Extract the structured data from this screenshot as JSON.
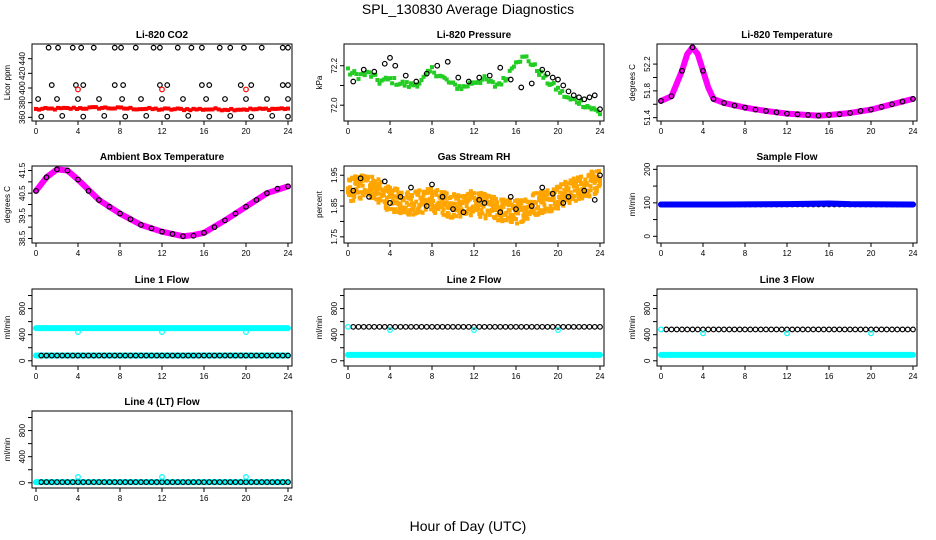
{
  "figure": {
    "title": "SPL_130830  Average Diagnostics",
    "xlabel": "Hour of Day (UTC)"
  },
  "colors": {
    "black": "#000000",
    "red": "#ff0000",
    "green": "#22cc22",
    "magenta": "#ff00ff",
    "orange": "#ffa500",
    "blue": "#0000ff",
    "cyan": "#00ffff"
  },
  "chart_data": [
    {
      "id": "co2",
      "type": "scatter",
      "title": "Li-820 CO2",
      "ylabel": "Licor ppm",
      "xlim": [
        0,
        24
      ],
      "ylim": [
        355,
        460
      ],
      "xticks": [
        0,
        4,
        8,
        12,
        16,
        20,
        24
      ],
      "yticks": [
        360,
        380,
        400,
        420,
        440
      ],
      "series": [
        {
          "kind": "band",
          "color": "red",
          "x": [
            0,
            3,
            6,
            9,
            12,
            15,
            18,
            21,
            24
          ],
          "y": [
            371,
            372,
            373,
            372,
            371,
            371,
            371,
            371,
            372
          ],
          "noise": 1.5,
          "step": 0.3
        },
        {
          "kind": "points",
          "color": "black",
          "x": [
            1.2,
            2.1,
            3.5,
            4.3,
            5.5,
            7.5,
            8.1,
            9.5,
            11.2,
            11.8,
            13.5,
            14.8,
            15.8,
            17.5,
            18.5,
            19.8,
            21.5,
            23.5,
            24
          ],
          "y": [
            455,
            455,
            455,
            455,
            455,
            455,
            455,
            455,
            455,
            455,
            455,
            455,
            455,
            455,
            455,
            455,
            455,
            455,
            455
          ]
        },
        {
          "kind": "points",
          "color": "black",
          "x": [
            1.5,
            3.8,
            4.5,
            7.5,
            8.3,
            11.8,
            12.5,
            15.8,
            16.5,
            19.5,
            20.5,
            23.5,
            24
          ],
          "y": [
            404,
            404,
            404,
            404,
            404,
            404,
            404,
            404,
            404,
            404,
            404,
            404,
            404
          ]
        },
        {
          "kind": "points",
          "color": "black",
          "x": [
            0.2,
            2.0,
            4.0,
            6.0,
            8.2,
            10.0,
            12.0,
            14.0,
            16.2,
            18.0,
            20.0,
            22.0,
            24
          ],
          "y": [
            385,
            385,
            385,
            385,
            385,
            385,
            385,
            385,
            385,
            385,
            385,
            385,
            385
          ]
        },
        {
          "kind": "points",
          "color": "black",
          "x": [
            0.5,
            2.5,
            4.5,
            6.5,
            8.5,
            10.5,
            12.5,
            14.5,
            16.5,
            18.5,
            20.5,
            22.5,
            24
          ],
          "y": [
            361,
            362,
            361,
            362,
            361,
            362,
            361,
            362,
            361,
            362,
            361,
            362,
            361
          ]
        },
        {
          "kind": "points",
          "color": "red",
          "x": [
            4.0,
            12.0,
            20.0
          ],
          "y": [
            398,
            398,
            398
          ]
        }
      ]
    },
    {
      "id": "pressure",
      "type": "scatter",
      "title": "Li-820 Pressure",
      "ylabel": "kPa",
      "xlim": [
        0,
        24
      ],
      "ylim": [
        71.92,
        72.31
      ],
      "xticks": [
        0,
        4,
        8,
        12,
        16,
        20,
        24
      ],
      "yticks": [
        72.0,
        72.1,
        72.2
      ],
      "ytick_labels": [
        "72.0",
        "",
        "72.2"
      ],
      "series": [
        {
          "kind": "band",
          "color": "green",
          "x": [
            0,
            1,
            2,
            3,
            4,
            5,
            6,
            7,
            8,
            9,
            10,
            11,
            12,
            13,
            14,
            15,
            16,
            17,
            18,
            19,
            20,
            21,
            22,
            23,
            24
          ],
          "y": [
            72.17,
            72.15,
            72.16,
            72.12,
            72.13,
            72.11,
            72.1,
            72.12,
            72.18,
            72.14,
            72.1,
            72.09,
            72.12,
            72.13,
            72.1,
            72.13,
            72.23,
            72.24,
            72.18,
            72.12,
            72.08,
            72.03,
            72.02,
            71.99,
            71.96
          ],
          "noise": 0.018,
          "step": 0.2
        },
        {
          "kind": "points",
          "color": "black",
          "x": [
            0.5,
            1.5,
            2.5,
            3.5,
            4.0,
            4.5,
            5.5,
            6.5,
            7.5,
            8.5,
            9.5,
            10.5,
            11.5,
            12.5,
            13.5,
            14.5,
            15.5,
            16.5,
            17.5,
            18.5,
            19.0,
            19.5,
            20.0,
            20.5,
            21.0,
            21.5,
            22.0,
            22.5,
            23.0,
            23.5,
            24.0
          ],
          "y": [
            72.12,
            72.18,
            72.17,
            72.21,
            72.24,
            72.2,
            72.15,
            72.12,
            72.16,
            72.2,
            72.22,
            72.14,
            72.12,
            72.14,
            72.15,
            72.19,
            72.13,
            72.09,
            72.11,
            72.18,
            72.16,
            72.14,
            72.13,
            72.1,
            72.07,
            72.05,
            72.04,
            72.03,
            72.04,
            72.05,
            71.98
          ]
        }
      ]
    },
    {
      "id": "temp",
      "type": "line",
      "title": "Li-820 Temperature",
      "ylabel": "degrees C",
      "xlim": [
        0,
        24
      ],
      "ylim": [
        51.35,
        52.5
      ],
      "xticks": [
        0,
        4,
        8,
        12,
        16,
        20,
        24
      ],
      "yticks": [
        51.4,
        51.6,
        51.8,
        52.0,
        52.2
      ],
      "ytick_labels": [
        "51.4",
        "",
        "51.8",
        "",
        "52.2"
      ],
      "series": [
        {
          "kind": "thick",
          "color": "magenta",
          "x": [
            0,
            1,
            2,
            2.5,
            3,
            3.5,
            4,
            4.5,
            5,
            6,
            8,
            10,
            12,
            14,
            15,
            16,
            18,
            20,
            22,
            24
          ],
          "y": [
            51.65,
            51.72,
            52.1,
            52.35,
            52.45,
            52.35,
            52.1,
            51.85,
            51.68,
            51.62,
            51.55,
            51.5,
            51.46,
            51.44,
            51.43,
            51.44,
            51.47,
            51.52,
            51.6,
            51.68
          ]
        },
        {
          "kind": "points",
          "color": "black",
          "x": [
            0,
            1,
            2,
            3,
            4,
            5,
            6,
            7,
            8,
            9,
            10,
            11,
            12,
            13,
            14,
            15,
            16,
            17,
            18,
            19,
            20,
            21,
            22,
            23,
            24
          ],
          "y": [
            51.65,
            51.72,
            52.1,
            52.45,
            52.1,
            51.68,
            51.62,
            51.58,
            51.55,
            51.52,
            51.5,
            51.48,
            51.46,
            51.45,
            51.44,
            51.43,
            51.44,
            51.45,
            51.47,
            51.5,
            51.52,
            51.56,
            51.6,
            51.64,
            51.68
          ]
        }
      ]
    },
    {
      "id": "ambient",
      "type": "line",
      "title": "Ambient Box Temperature",
      "ylabel": "degrees C",
      "xlim": [
        0,
        24
      ],
      "ylim": [
        38.3,
        41.7
      ],
      "xticks": [
        0,
        4,
        8,
        12,
        16,
        20,
        24
      ],
      "yticks": [
        38.5,
        39.0,
        39.5,
        40.0,
        40.5,
        41.0,
        41.5
      ],
      "ytick_labels": [
        "38.5",
        "",
        "39.5",
        "",
        "40.5",
        "",
        "41.5"
      ],
      "series": [
        {
          "kind": "thick",
          "color": "magenta",
          "x": [
            0,
            1,
            2,
            3,
            4,
            6,
            8,
            10,
            12,
            14,
            15,
            16,
            18,
            20,
            22,
            24
          ],
          "y": [
            40.6,
            41.2,
            41.55,
            41.5,
            41.1,
            40.2,
            39.6,
            39.1,
            38.8,
            38.6,
            38.65,
            38.75,
            39.3,
            39.9,
            40.5,
            40.8
          ]
        },
        {
          "kind": "points",
          "color": "black",
          "x": [
            0,
            1,
            2,
            3,
            4,
            5,
            6,
            7,
            8,
            9,
            10,
            11,
            12,
            13,
            14,
            15,
            16,
            17,
            18,
            19,
            20,
            21,
            22,
            23,
            24
          ],
          "y": [
            40.6,
            41.2,
            41.55,
            41.5,
            41.1,
            40.6,
            40.2,
            39.9,
            39.6,
            39.35,
            39.1,
            38.95,
            38.8,
            38.7,
            38.6,
            38.62,
            38.75,
            39.0,
            39.3,
            39.6,
            39.9,
            40.2,
            40.5,
            40.7,
            40.8
          ]
        }
      ]
    },
    {
      "id": "rh",
      "type": "scatter",
      "title": "Gas Stream RH",
      "ylabel": "percent",
      "xlim": [
        0,
        24
      ],
      "ylim": [
        1.73,
        1.98
      ],
      "xticks": [
        0,
        4,
        8,
        12,
        16,
        20,
        24
      ],
      "yticks": [
        1.75,
        1.8,
        1.85,
        1.9,
        1.95
      ],
      "ytick_labels": [
        "1.75",
        "",
        "1.85",
        "",
        "1.95"
      ],
      "series": [
        {
          "kind": "cloud",
          "color": "orange",
          "x": [
            0,
            2,
            4,
            6,
            8,
            10,
            12,
            14,
            16,
            18,
            20,
            22,
            24
          ],
          "y": [
            1.9,
            1.92,
            1.87,
            1.86,
            1.87,
            1.85,
            1.86,
            1.84,
            1.83,
            1.86,
            1.88,
            1.91,
            1.93
          ],
          "noise": 0.04,
          "step": 0.1
        },
        {
          "kind": "points",
          "color": "black",
          "x": [
            0.5,
            1.2,
            2.0,
            3.5,
            4.0,
            5.0,
            6.0,
            7.5,
            8.0,
            9.0,
            10.0,
            11.0,
            12.5,
            13.0,
            14.5,
            15.5,
            16.0,
            17.5,
            18.5,
            19.5,
            20.5,
            21.0,
            22.5,
            23.5,
            24.0
          ],
          "y": [
            1.9,
            1.94,
            1.88,
            1.93,
            1.86,
            1.88,
            1.91,
            1.85,
            1.92,
            1.88,
            1.84,
            1.83,
            1.87,
            1.86,
            1.83,
            1.88,
            1.84,
            1.85,
            1.91,
            1.89,
            1.86,
            1.88,
            1.9,
            1.87,
            1.95
          ]
        }
      ]
    },
    {
      "id": "sampleflow",
      "type": "line",
      "title": "Sample Flow",
      "ylabel": "ml/min",
      "xlim": [
        0,
        24
      ],
      "ylim": [
        -20,
        210
      ],
      "xticks": [
        0,
        4,
        8,
        12,
        16,
        20,
        24
      ],
      "yticks": [
        0,
        50,
        100,
        150,
        200
      ],
      "ytick_labels": [
        "0",
        "",
        "100",
        "",
        "200"
      ],
      "series": [
        {
          "kind": "points",
          "color": "black",
          "dense": true,
          "x": [
            0,
            24
          ],
          "y": [
            95,
            95
          ]
        },
        {
          "kind": "thick",
          "color": "blue",
          "x": [
            0,
            6,
            12,
            16,
            18,
            24
          ],
          "y": [
            95,
            95,
            96,
            98,
            96,
            95
          ]
        }
      ]
    },
    {
      "id": "line1",
      "type": "line",
      "title": "Line 1 Flow",
      "ylabel": "ml/min",
      "xlim": [
        0,
        24
      ],
      "ylim": [
        -80,
        1100
      ],
      "xticks": [
        0,
        4,
        8,
        12,
        16,
        20,
        24
      ],
      "yticks": [
        0,
        200,
        400,
        600,
        800,
        1000
      ],
      "ytick_labels": [
        "0",
        "",
        "400",
        "",
        "800",
        ""
      ],
      "series": [
        {
          "kind": "thick",
          "color": "cyan",
          "x": [
            0,
            24
          ],
          "y": [
            500,
            500
          ]
        },
        {
          "kind": "thick",
          "color": "cyan",
          "x": [
            0,
            24
          ],
          "y": [
            80,
            80
          ]
        },
        {
          "kind": "points",
          "color": "black",
          "dense": true,
          "x": [
            0.5,
            24
          ],
          "y": [
            80,
            80
          ]
        },
        {
          "kind": "points",
          "color": "cyan",
          "x": [
            4.0,
            12.0,
            20.0
          ],
          "y": [
            440,
            440,
            440
          ]
        }
      ]
    },
    {
      "id": "line2",
      "type": "line",
      "title": "Line 2 Flow",
      "ylabel": "ml/min",
      "xlim": [
        0,
        24
      ],
      "ylim": [
        -80,
        1100
      ],
      "xticks": [
        0,
        4,
        8,
        12,
        16,
        20,
        24
      ],
      "yticks": [
        0,
        200,
        400,
        600,
        800,
        1000
      ],
      "ytick_labels": [
        "0",
        "",
        "400",
        "",
        "800",
        ""
      ],
      "series": [
        {
          "kind": "thick",
          "color": "cyan",
          "x": [
            0,
            24
          ],
          "y": [
            90,
            90
          ]
        },
        {
          "kind": "points",
          "color": "black",
          "dense": true,
          "x": [
            0.5,
            24
          ],
          "y": [
            520,
            520
          ]
        },
        {
          "kind": "points",
          "color": "cyan",
          "x": [
            0.0,
            4.0,
            12.0,
            20.0
          ],
          "y": [
            520,
            470,
            470,
            470
          ]
        }
      ]
    },
    {
      "id": "line3",
      "type": "line",
      "title": "Line 3 Flow",
      "ylabel": "ml/min",
      "xlim": [
        0,
        24
      ],
      "ylim": [
        -80,
        1100
      ],
      "xticks": [
        0,
        4,
        8,
        12,
        16,
        20,
        24
      ],
      "yticks": [
        0,
        200,
        400,
        600,
        800,
        1000
      ],
      "ytick_labels": [
        "0",
        "",
        "400",
        "",
        "800",
        ""
      ],
      "series": [
        {
          "kind": "thick",
          "color": "cyan",
          "x": [
            0,
            24
          ],
          "y": [
            90,
            90
          ]
        },
        {
          "kind": "points",
          "color": "black",
          "dense": true,
          "x": [
            0.5,
            24
          ],
          "y": [
            480,
            480
          ]
        },
        {
          "kind": "points",
          "color": "cyan",
          "x": [
            0.0,
            4.0,
            12.0,
            20.0
          ],
          "y": [
            480,
            420,
            420,
            420
          ]
        }
      ]
    },
    {
      "id": "line4",
      "type": "line",
      "title": "Line 4 (LT) Flow",
      "ylabel": "ml/min",
      "xlim": [
        0,
        24
      ],
      "ylim": [
        -80,
        1100
      ],
      "xticks": [
        0,
        4,
        8,
        12,
        16,
        20,
        24
      ],
      "yticks": [
        0,
        200,
        400,
        600,
        800,
        1000
      ],
      "ytick_labels": [
        "0",
        "",
        "400",
        "",
        "800",
        ""
      ],
      "series": [
        {
          "kind": "thick",
          "color": "cyan",
          "x": [
            0,
            24
          ],
          "y": [
            10,
            10
          ]
        },
        {
          "kind": "points",
          "color": "black",
          "dense": true,
          "x": [
            0.5,
            24
          ],
          "y": [
            10,
            10
          ]
        },
        {
          "kind": "points",
          "color": "cyan",
          "x": [
            0.0,
            4.0,
            12.0,
            20.0
          ],
          "y": [
            10,
            90,
            90,
            90
          ]
        }
      ]
    }
  ]
}
